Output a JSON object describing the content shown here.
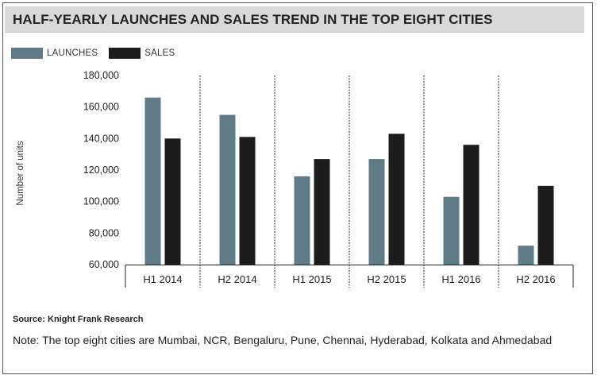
{
  "title": "HALF-YEARLY LAUNCHES AND SALES TREND IN THE TOP EIGHT CITIES",
  "legend": {
    "launches_label": "LAUNCHES",
    "sales_label": "SALES"
  },
  "colors": {
    "launches": "#5f7b88",
    "sales": "#1c1c1c",
    "title_bar": "#d9d9d9"
  },
  "chart_data": {
    "type": "bar",
    "title": "HALF-YEARLY LAUNCHES AND SALES TREND IN THE TOP EIGHT CITIES",
    "xlabel": "",
    "ylabel": "Number of units",
    "categories": [
      "H1 2014",
      "H2 2014",
      "H1 2015",
      "H2 2015",
      "H1 2016",
      "H2 2016"
    ],
    "series": [
      {
        "name": "LAUNCHES",
        "values": [
          166000,
          155000,
          116000,
          127000,
          103000,
          72000
        ]
      },
      {
        "name": "SALES",
        "values": [
          140000,
          141000,
          127000,
          143000,
          136000,
          110000
        ]
      }
    ],
    "ylim": [
      60000,
      180000
    ],
    "yticks": [
      "60,000",
      "80,000",
      "100,000",
      "120,000",
      "140,000",
      "160,000",
      "180,000"
    ],
    "ytick_values": [
      60000,
      80000,
      100000,
      120000,
      140000,
      160000,
      180000
    ],
    "grid": false,
    "legend_position": "top-left"
  },
  "source": "Source: Knight Frank Research",
  "note": "Note: The top eight cities are Mumbai, NCR, Bengaluru, Pune, Chennai, Hyderabad, Kolkata and Ahmedabad"
}
